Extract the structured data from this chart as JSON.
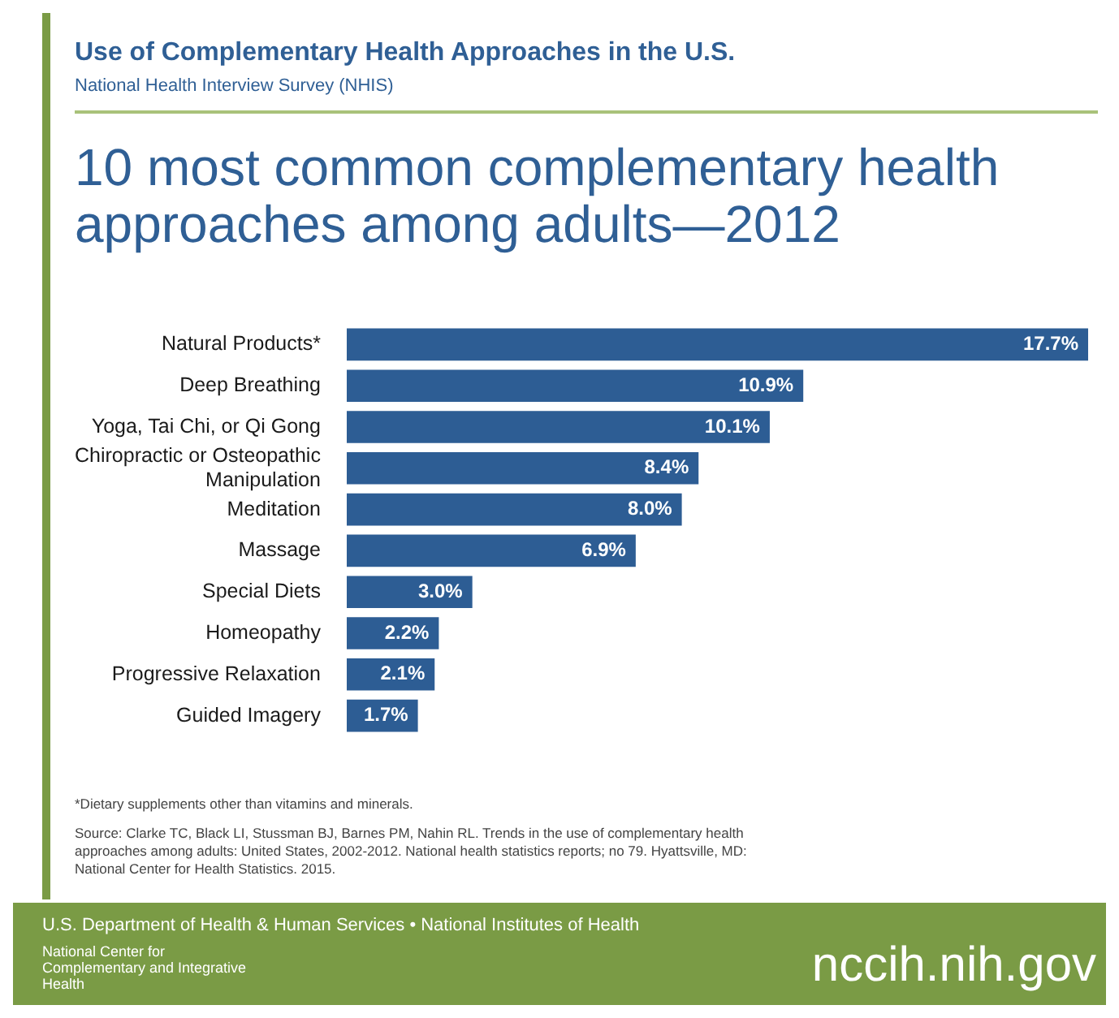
{
  "chart_data": {
    "type": "bar",
    "orientation": "horizontal",
    "title": "Use of Complementary Health Approaches in the U.S.",
    "subtitle": "National Health Interview Survey (NHIS)",
    "categories": [
      "Natural Products*",
      "Deep Breathing",
      "Yoga, Tai Chi, or Qi Gong",
      "Chiropractic or Osteopathic Manipulation",
      "Meditation",
      "Massage",
      "Special Diets",
      "Homeopathy",
      "Progressive Relaxation",
      "Guided Imagery"
    ],
    "values": [
      17.7,
      10.9,
      10.1,
      8.4,
      8.0,
      6.9,
      3.0,
      2.2,
      2.1,
      1.7
    ],
    "value_labels": [
      "17.7%",
      "10.9%",
      "10.1%",
      "8.4%",
      "8.0%",
      "6.9%",
      "3.0%",
      "2.2%",
      "2.1%",
      "1.7%"
    ],
    "color": "#2d5d94",
    "legend": false,
    "tick_labels": "y",
    "annotations": [
      "10 most common complementary health approaches among adults—2012",
      "*Dietary supplements other than vitamins and minerals.",
      "Source: Clarke TC, Black LI, Stussman BJ, Barnes PM, Nahin RL. Trends in the use of complementary health approaches among adults: United States, 2002-2012. National health statistics reports; no 79. Hyattsville, MD: National Center for Health Statistics. 2015.",
      "U.S. Department of Health & Human Services • National Institutes of Health",
      "National Center for Complementary and Integrative Health",
      "nccih.nih.gov"
    ]
  }
}
